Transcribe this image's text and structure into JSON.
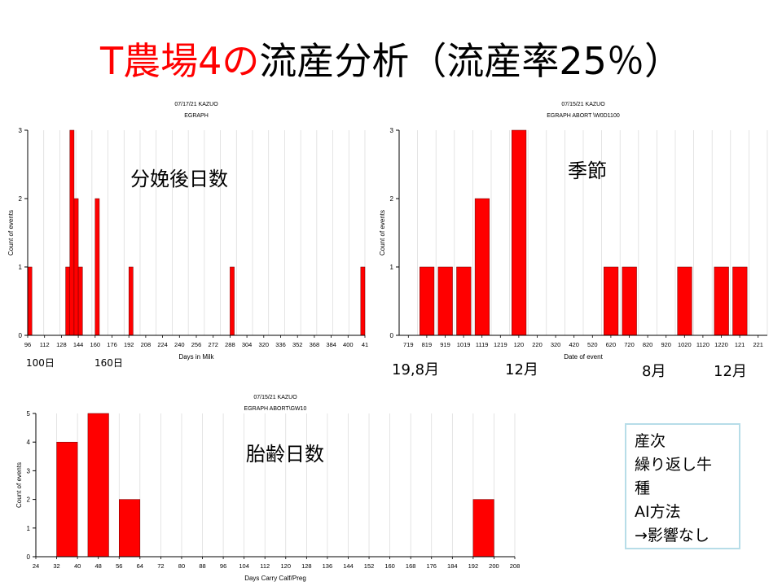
{
  "title": {
    "highlight": "T農場4の",
    "rest": "流産分析（流産率25％）"
  },
  "colors": {
    "bar": "#ff0000",
    "title_highlight": "#ff0000",
    "box_border": "#b7dde8"
  },
  "chart_data": [
    {
      "type": "bar",
      "header_date": "07/17/21",
      "header_user": "KAZUO",
      "header_title": "EGRAPH",
      "overlay_label": "分娩後日数",
      "xlabel": "Days in Milk",
      "ylabel": "Count of events",
      "ylim": [
        0,
        3
      ],
      "yticks": [
        "0",
        "1",
        "2",
        "3"
      ],
      "xticks": [
        "96",
        "112",
        "128",
        "144",
        "160",
        "176",
        "192",
        "208",
        "224",
        "240",
        "256",
        "272",
        "288",
        "304",
        "320",
        "336",
        "352",
        "368",
        "384",
        "400",
        "41"
      ],
      "xmin": 96,
      "xmax": 416,
      "bin_width": 4,
      "bars": [
        {
          "x": 96,
          "value": 1
        },
        {
          "x": 132,
          "value": 1
        },
        {
          "x": 136,
          "value": 3
        },
        {
          "x": 140,
          "value": 2
        },
        {
          "x": 144,
          "value": 1
        },
        {
          "x": 160,
          "value": 2
        },
        {
          "x": 192,
          "value": 1
        },
        {
          "x": 288,
          "value": 1
        },
        {
          "x": 412,
          "value": 1
        }
      ],
      "below_labels": [
        "100日",
        "160日"
      ]
    },
    {
      "type": "bar",
      "header_date": "07/15/21",
      "header_user": "KAZUO",
      "header_title": "EGRAPH ABORT \\W0D1100",
      "overlay_label": "季節",
      "xlabel": "Date of event",
      "ylabel": "Count of events",
      "ylim": [
        0,
        3
      ],
      "yticks": [
        "0",
        "1",
        "2",
        "3"
      ],
      "xticks": [
        "719",
        "819",
        "919",
        "1019",
        "1119",
        "1219",
        "120",
        "220",
        "320",
        "420",
        "520",
        "620",
        "720",
        "820",
        "920",
        "1020",
        "1120",
        "1220",
        "121",
        "221"
      ],
      "values": [
        0,
        1,
        1,
        1,
        2,
        0,
        3,
        0,
        0,
        0,
        0,
        1,
        1,
        0,
        0,
        1,
        0,
        1,
        1,
        0
      ],
      "below_labels": [
        "19,8月",
        "12月",
        "8月",
        "12月"
      ]
    },
    {
      "type": "bar",
      "header_date": "07/15/21",
      "header_user": "KAZUO",
      "header_title": "EGRAPH ABORT\\GW10",
      "overlay_label": "胎齢日数",
      "xlabel": "Days Carry Calf/Preg",
      "ylabel": "Count of events",
      "ylim": [
        0,
        5
      ],
      "yticks": [
        "0",
        "1",
        "2",
        "3",
        "4",
        "5"
      ],
      "xticks": [
        "24",
        "32",
        "40",
        "48",
        "56",
        "64",
        "72",
        "80",
        "88",
        "96",
        "104",
        "112",
        "120",
        "128",
        "136",
        "144",
        "152",
        "160",
        "168",
        "176",
        "184",
        "192",
        "200",
        "208"
      ],
      "xmin": 24,
      "xmax": 208,
      "bin_width": 8,
      "bars": [
        {
          "x": 32,
          "value": 4
        },
        {
          "x": 44,
          "value": 5
        },
        {
          "x": 56,
          "value": 2
        },
        {
          "x": 192,
          "value": 2
        }
      ],
      "below_labels": []
    }
  ],
  "factors_box": {
    "lines": [
      "産次",
      "繰り返し牛",
      "種",
      "AI方法",
      "→影響なし"
    ]
  }
}
